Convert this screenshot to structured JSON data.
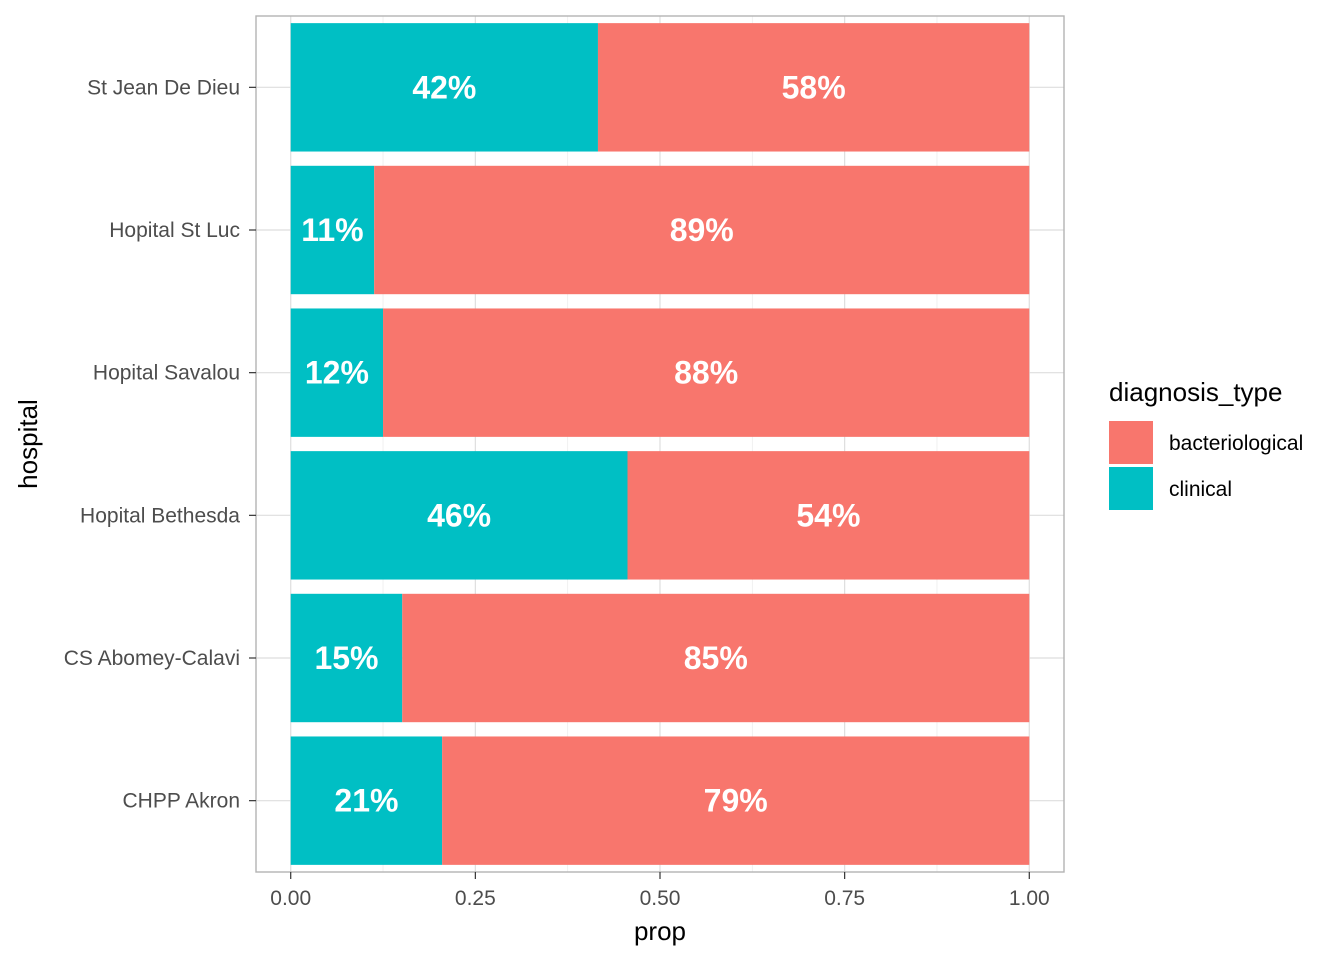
{
  "chart_data": {
    "type": "bar",
    "orientation": "horizontal",
    "stacked": true,
    "categories": [
      "St Jean De Dieu",
      "Hopital St Luc",
      "Hopital Savalou",
      "Hopital Bethesda",
      "CS Abomey-Calavi",
      "CHPP Akron"
    ],
    "series": [
      {
        "name": "clinical",
        "color": "#00BFC4",
        "values": [
          0.416,
          0.113,
          0.125,
          0.456,
          0.151,
          0.205
        ],
        "labels": [
          "42%",
          "11%",
          "12%",
          "46%",
          "15%",
          "21%"
        ]
      },
      {
        "name": "bacteriological",
        "color": "#F8766D",
        "values": [
          0.584,
          0.887,
          0.875,
          0.544,
          0.849,
          0.795
        ],
        "labels": [
          "58%",
          "89%",
          "88%",
          "54%",
          "85%",
          "79%"
        ]
      }
    ],
    "xlabel": "prop",
    "ylabel": "hospital",
    "xlim": [
      -0.047,
      1.047
    ],
    "xticks": [
      0,
      0.25,
      0.5,
      0.75,
      1
    ],
    "xtick_labels": [
      "0.00",
      "0.25",
      "0.50",
      "0.75",
      "1.00"
    ],
    "grid": true,
    "legend": {
      "title": "diagnosis_type",
      "position": "right",
      "entries": [
        {
          "label": "bacteriological",
          "color": "#F8766D"
        },
        {
          "label": "clinical",
          "color": "#00BFC4"
        }
      ]
    }
  }
}
